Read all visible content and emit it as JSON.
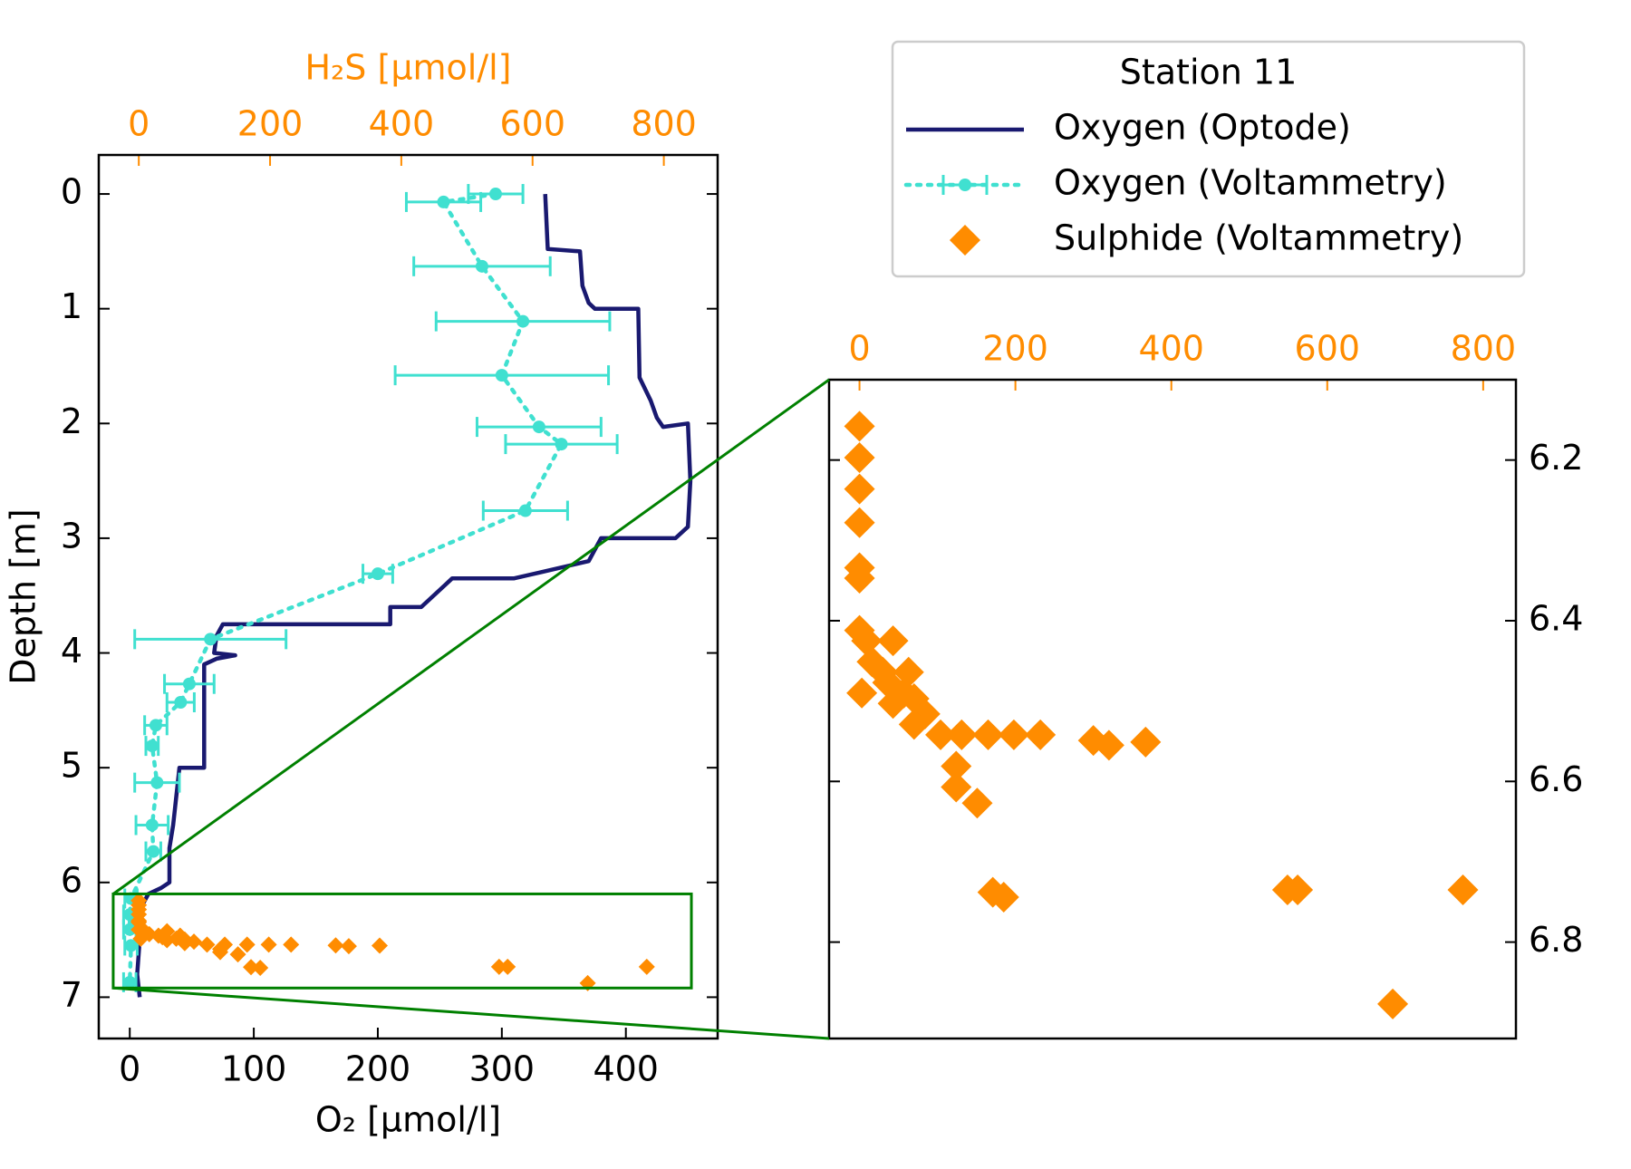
{
  "chart_data": [
    {
      "type": "depth-profile",
      "xlabel": "O₂ [µmol/l]",
      "x2label": "H₂S [µmol/l]",
      "ylabel": "Depth [m]",
      "xlim": [
        -25,
        474
      ],
      "xticks": [
        0,
        100,
        200,
        300,
        400
      ],
      "x2lim": [
        -61,
        882
      ],
      "x2ticks": [
        0,
        200,
        400,
        600,
        800
      ],
      "x2color": "#ff8c00",
      "ylim": [
        -0.34,
        7.36
      ],
      "yticks": [
        0,
        1,
        2,
        3,
        4,
        5,
        6,
        7
      ],
      "y_inverted": true,
      "legend": {
        "title": "Station 11",
        "position": "upper right"
      },
      "zoom_color": "#008000",
      "series": [
        {
          "name": "Oxygen (Optode)",
          "color": "#191970",
          "style": "line",
          "axis": "x",
          "x": [
            335,
            337,
            363,
            365,
            370,
            375,
            410,
            411,
            420,
            425,
            430,
            450,
            452,
            450,
            440,
            380,
            370,
            330,
            310,
            260,
            255,
            235,
            210,
            210,
            75,
            70,
            68,
            85,
            70,
            60,
            60,
            40,
            35,
            32,
            32,
            25,
            15,
            10,
            8,
            6,
            8
          ],
          "y": [
            0,
            0.48,
            0.5,
            0.8,
            0.95,
            1.0,
            1.0,
            1.6,
            1.8,
            1.95,
            2.03,
            2.0,
            2.5,
            2.9,
            3.0,
            3.0,
            3.2,
            3.3,
            3.35,
            3.35,
            3.4,
            3.6,
            3.6,
            3.75,
            3.75,
            3.85,
            4.0,
            4.02,
            4.05,
            4.1,
            5.0,
            5.0,
            5.5,
            5.7,
            6.0,
            6.05,
            6.1,
            6.2,
            6.5,
            6.8,
            7.0
          ]
        },
        {
          "name": "Oxygen (Voltammetry)",
          "color": "#40e0d0",
          "style": "errorbar",
          "linestyle": "dotted",
          "axis": "x",
          "x": [
            295,
            253,
            284,
            317,
            300,
            330,
            348,
            319,
            200,
            65,
            48,
            41,
            21,
            18,
            22,
            18,
            19,
            1,
            0,
            0,
            1,
            0
          ],
          "y": [
            0.0,
            0.07,
            0.63,
            1.11,
            1.58,
            2.03,
            2.18,
            2.76,
            3.31,
            3.88,
            4.27,
            4.43,
            4.63,
            4.81,
            5.13,
            5.5,
            5.73,
            6.14,
            6.28,
            6.41,
            6.55,
            6.87
          ],
          "xerr": [
            22,
            30,
            55,
            70,
            86,
            50,
            45,
            34,
            12,
            61,
            20,
            11,
            9,
            5,
            18,
            13,
            6,
            5,
            5,
            5,
            5,
            5
          ]
        },
        {
          "name": "Sulphide (Voltammetry)",
          "color": "#ff8c00",
          "style": "diamond",
          "axis": "x2",
          "x": [
            0,
            0,
            0,
            0,
            0,
            0,
            0,
            9,
            43,
            16,
            30,
            63,
            36,
            3,
            57,
            70,
            43,
            84,
            70,
            104,
            131,
            165,
            198,
            232,
            300,
            320,
            367,
            124,
            124,
            151,
            171,
            185,
            549,
            562,
            774,
            684
          ],
          "y": [
            6.158,
            6.197,
            6.236,
            6.278,
            6.334,
            6.347,
            6.412,
            6.425,
            6.425,
            6.451,
            6.464,
            6.464,
            6.477,
            6.49,
            6.49,
            6.497,
            6.503,
            6.516,
            6.529,
            6.542,
            6.542,
            6.542,
            6.542,
            6.542,
            6.549,
            6.555,
            6.551,
            6.581,
            6.607,
            6.627,
            6.738,
            6.744,
            6.735,
            6.735,
            6.735,
            6.877
          ]
        }
      ]
    },
    {
      "type": "scatter",
      "x2lim": [
        -39,
        842
      ],
      "x2ticks": [
        0,
        200,
        400,
        600,
        800
      ],
      "x2color": "#ff8c00",
      "ylim": [
        6.1,
        6.92
      ],
      "yticks": [
        6.2,
        6.4,
        6.6,
        6.8
      ],
      "y_inverted": true,
      "y_side": "right",
      "series": [
        {
          "color": "#ff8c00",
          "style": "diamond",
          "axis": "x2",
          "x": [
            0,
            0,
            0,
            0,
            0,
            0,
            0,
            9,
            43,
            16,
            30,
            63,
            36,
            3,
            57,
            70,
            43,
            84,
            70,
            104,
            131,
            165,
            198,
            232,
            300,
            320,
            367,
            124,
            124,
            151,
            171,
            185,
            549,
            562,
            774,
            684
          ],
          "y": [
            6.158,
            6.197,
            6.236,
            6.278,
            6.334,
            6.347,
            6.412,
            6.425,
            6.425,
            6.451,
            6.464,
            6.464,
            6.477,
            6.49,
            6.49,
            6.497,
            6.503,
            6.516,
            6.529,
            6.542,
            6.542,
            6.542,
            6.542,
            6.542,
            6.549,
            6.555,
            6.551,
            6.581,
            6.607,
            6.627,
            6.738,
            6.744,
            6.735,
            6.735,
            6.735,
            6.877
          ]
        }
      ]
    }
  ]
}
